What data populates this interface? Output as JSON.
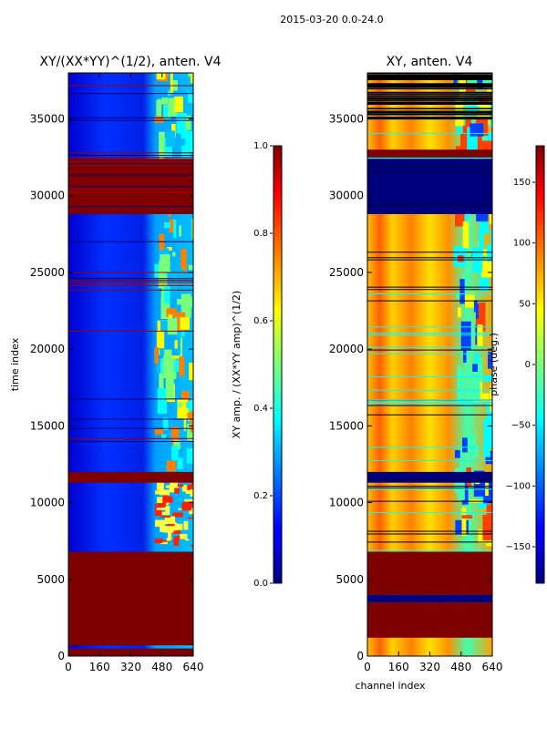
{
  "suptitle": "2015-03-20 0.0-24.0",
  "chart_data": [
    {
      "type": "heatmap",
      "title": "XY/(XX*YY)^(1/2), anten. V4",
      "xlabel": "",
      "ylabel": "time index",
      "xlim": [
        0,
        640
      ],
      "ylim": [
        0,
        38000
      ],
      "xticks": [
        "0",
        "160",
        "320",
        "480",
        "640"
      ],
      "yticks": [
        "0",
        "5000",
        "10000",
        "15000",
        "20000",
        "25000",
        "30000",
        "35000"
      ],
      "colormap": "jet",
      "colorbar": {
        "label": "XY amp. / (XX*YY amp)^(1/2)",
        "range": [
          0.0,
          1.0
        ],
        "ticks": [
          "0.0",
          "0.2",
          "0.4",
          "0.6",
          "0.8",
          "1.0"
        ]
      },
      "saturated_time_bands": [
        [
          0,
          500
        ],
        [
          700,
          6800
        ],
        [
          11300,
          12000
        ],
        [
          28800,
          32400
        ]
      ],
      "bright_channel_range": [
        440,
        640
      ]
    },
    {
      "type": "heatmap",
      "title": "XY, anten. V4",
      "xlabel": "channel index",
      "ylabel": "",
      "xlim": [
        0,
        640
      ],
      "ylim": [
        0,
        38000
      ],
      "xticks": [
        "0",
        "160",
        "320",
        "480",
        "640"
      ],
      "yticks": [
        "0",
        "5000",
        "10000",
        "15000",
        "20000",
        "25000",
        "30000",
        "35000"
      ],
      "colormap": "jet",
      "colorbar": {
        "label": "phase (deg.)",
        "range": [
          -180,
          180
        ],
        "ticks": [
          "−150",
          "−100",
          "−50",
          "0",
          "50",
          "100",
          "150"
        ]
      },
      "high_phase_time_bands": [
        [
          1200,
          3500
        ],
        [
          4000,
          6800
        ],
        [
          32400,
          33000
        ]
      ],
      "low_phase_time_bands": [
        [
          28800,
          32400
        ],
        [
          3500,
          4000
        ],
        [
          11300,
          12000
        ]
      ]
    }
  ]
}
